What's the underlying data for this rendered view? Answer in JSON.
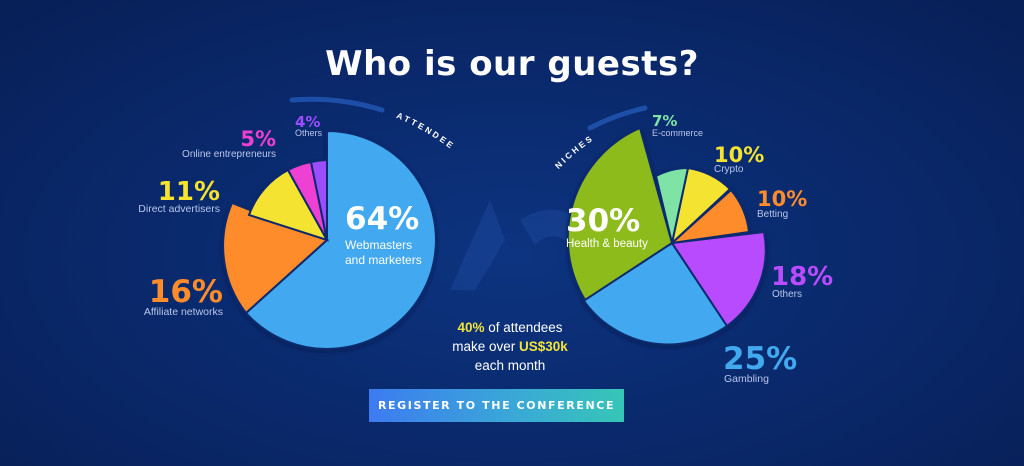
{
  "page": {
    "title": "Who is our guests?",
    "stat": {
      "highlight1": "40%",
      "text1": " of attendees",
      "text2": "make over ",
      "highlight2": "US$30k",
      "text3": "each month"
    },
    "register_label": "REGISTER TO THE CONFERENCE"
  },
  "chart_data": [
    {
      "type": "pie",
      "title": "ATTENDEES",
      "slices": [
        {
          "value": "64%",
          "name": "Webmasters and marketers",
          "color": "#42a8ef"
        },
        {
          "value": "16%",
          "name": "Affiliate networks",
          "color": "#ff8c2a"
        },
        {
          "value": "11%",
          "name": "Direct advertisers",
          "color": "#f5e330"
        },
        {
          "value": "5%",
          "name": "Online entrepreneurs",
          "color": "#ee3fd2"
        },
        {
          "value": "4%",
          "name": "Others",
          "color": "#9b4dff"
        }
      ]
    },
    {
      "type": "pie",
      "title": "NICHES",
      "slices": [
        {
          "value": "30%",
          "name": "Health & beauty",
          "color": "#8dbb1d"
        },
        {
          "value": "7%",
          "name": "E-commerce",
          "color": "#7fe3a5"
        },
        {
          "value": "10%",
          "name": "Crypto",
          "color": "#f5e330"
        },
        {
          "value": "10%",
          "name": "Betting",
          "color": "#ff8c2a"
        },
        {
          "value": "18%",
          "name": "Others",
          "color": "#b94cff"
        },
        {
          "value": "25%",
          "name": "Gambling",
          "color": "#42a8ef"
        }
      ]
    }
  ],
  "colors": {
    "background": "#0a2a6e",
    "highlight": "#f2e33c"
  }
}
